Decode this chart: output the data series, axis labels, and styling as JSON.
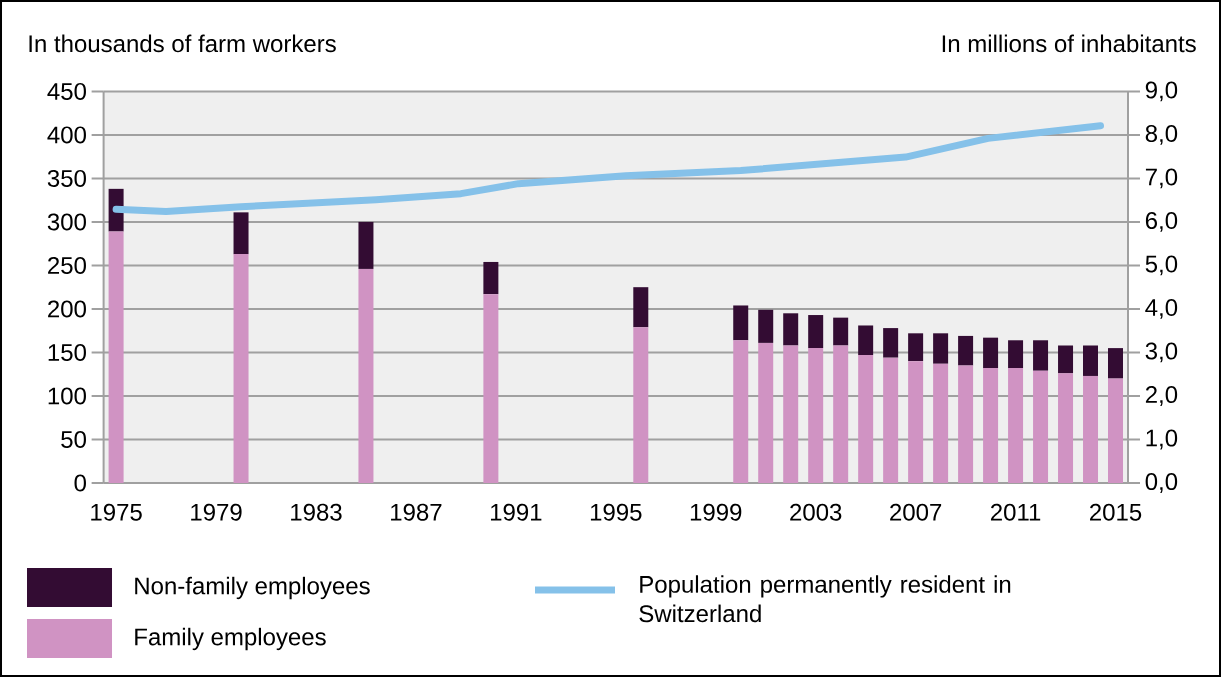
{
  "chart_data": {
    "type": "bar",
    "stacked": true,
    "ylabel": "In thousands of farm workers",
    "y2label": "In millions of inhabitants",
    "x": [
      1975,
      1980,
      1985,
      1990,
      1996,
      2000,
      2001,
      2002,
      2003,
      2004,
      2005,
      2006,
      2007,
      2008,
      2009,
      2010,
      2011,
      2012,
      2013,
      2014,
      2015
    ],
    "series": [
      {
        "name": "Family employees",
        "color": "#d093c3",
        "values": [
          289,
          263,
          246,
          217,
          179,
          164,
          161,
          158,
          155,
          158,
          147,
          144,
          140,
          137,
          135,
          132,
          132,
          129,
          126,
          123,
          120
        ]
      },
      {
        "name": "Non-family employees",
        "color": "#330c33",
        "values": [
          49,
          48,
          54,
          37,
          46,
          40,
          38,
          37,
          38,
          32,
          34,
          34,
          32,
          35,
          34,
          35,
          32,
          35,
          32,
          35,
          35
        ]
      },
      {
        "name": "Population permanently resident in Switzerland",
        "type": "line",
        "axis": "y2",
        "color": "#85c1e9",
        "x": [
          1975,
          1977,
          1980,
          1985.4,
          1988.8,
          1991.1,
          1995.4,
          2000,
          2006.6,
          2009.9,
          2014.4
        ],
        "values": [
          6.29,
          6.24,
          6.35,
          6.51,
          6.65,
          6.88,
          7.06,
          7.18,
          7.49,
          7.92,
          8.21
        ]
      }
    ],
    "xlim": [
      1974.5,
      2015.5
    ],
    "xticks": [
      1975,
      1979,
      1983,
      1987,
      1991,
      1995,
      1999,
      2003,
      2007,
      2011,
      2015
    ],
    "ylim": [
      0,
      450
    ],
    "yticks": [
      0,
      50,
      100,
      150,
      200,
      250,
      300,
      350,
      400,
      450
    ],
    "y2lim": [
      0,
      9
    ],
    "y2ticks": [
      {
        "value": 0,
        "label": "0,0"
      },
      {
        "value": 1,
        "label": "1,0"
      },
      {
        "value": 2,
        "label": "2,0"
      },
      {
        "value": 3,
        "label": "3,0"
      },
      {
        "value": 4,
        "label": "4,0"
      },
      {
        "value": 5,
        "label": "5,0"
      },
      {
        "value": 6,
        "label": "6,0"
      },
      {
        "value": 7,
        "label": "7,0"
      },
      {
        "value": 8,
        "label": "8,0"
      },
      {
        "value": 9,
        "label": "9,0"
      }
    ],
    "grid": "y",
    "legend": "bottom"
  }
}
